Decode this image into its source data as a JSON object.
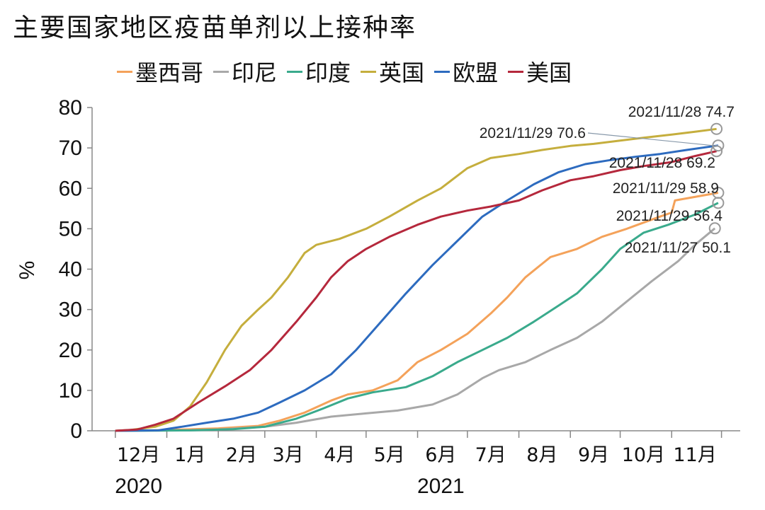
{
  "chart_data": {
    "type": "line",
    "title": "主要国家地区疫苗单剂以上接种率",
    "ylabel": "%",
    "ylim": [
      0,
      80
    ],
    "yticks": [
      0,
      10,
      20,
      30,
      40,
      50,
      60,
      70,
      80
    ],
    "x_start": "2020-12-01",
    "x_end": "2021-11-29",
    "x_ticks": [
      {
        "date": "2020-12-15",
        "label": "12月"
      },
      {
        "date": "2021-01-15",
        "label": "1月"
      },
      {
        "date": "2021-02-15",
        "label": "2月"
      },
      {
        "date": "2021-03-15",
        "label": "3月"
      },
      {
        "date": "2021-04-15",
        "label": "4月"
      },
      {
        "date": "2021-05-15",
        "label": "5月"
      },
      {
        "date": "2021-06-15",
        "label": "6月"
      },
      {
        "date": "2021-07-15",
        "label": "7月"
      },
      {
        "date": "2021-08-15",
        "label": "8月"
      },
      {
        "date": "2021-09-15",
        "label": "9月"
      },
      {
        "date": "2021-10-15",
        "label": "10月"
      },
      {
        "date": "2021-11-15",
        "label": "11月"
      }
    ],
    "year_labels": [
      {
        "date": "2020-12-15",
        "label": "2020"
      },
      {
        "date": "2021-06-15",
        "label": "2021"
      }
    ],
    "grid": false,
    "legend_position": "top",
    "series": [
      {
        "name": "墨西哥",
        "color": "#f4a25a",
        "points": [
          [
            "2020-12-01",
            0
          ],
          [
            "2020-12-24",
            0.1
          ],
          [
            "2021-01-10",
            0.3
          ],
          [
            "2021-02-01",
            0.6
          ],
          [
            "2021-02-25",
            1.2
          ],
          [
            "2021-03-10",
            2.5
          ],
          [
            "2021-03-25",
            4.5
          ],
          [
            "2021-04-10",
            7.5
          ],
          [
            "2021-04-20",
            9
          ],
          [
            "2021-05-05",
            10
          ],
          [
            "2021-05-20",
            12.5
          ],
          [
            "2021-06-01",
            17
          ],
          [
            "2021-06-15",
            20
          ],
          [
            "2021-07-01",
            24
          ],
          [
            "2021-07-15",
            29
          ],
          [
            "2021-07-25",
            33
          ],
          [
            "2021-08-05",
            38
          ],
          [
            "2021-08-20",
            43
          ],
          [
            "2021-09-05",
            45
          ],
          [
            "2021-09-20",
            48
          ],
          [
            "2021-10-05",
            50
          ],
          [
            "2021-10-25",
            53
          ],
          [
            "2021-11-01",
            54
          ],
          [
            "2021-11-03",
            57
          ],
          [
            "2021-11-29",
            58.9
          ]
        ]
      },
      {
        "name": "印尼",
        "color": "#a8a8a8",
        "points": [
          [
            "2020-12-01",
            0
          ],
          [
            "2021-01-13",
            0.1
          ],
          [
            "2021-02-01",
            0.3
          ],
          [
            "2021-03-01",
            1
          ],
          [
            "2021-03-20",
            2
          ],
          [
            "2021-04-10",
            3.5
          ],
          [
            "2021-05-01",
            4.3
          ],
          [
            "2021-05-20",
            5
          ],
          [
            "2021-06-10",
            6.5
          ],
          [
            "2021-06-25",
            9
          ],
          [
            "2021-07-10",
            13
          ],
          [
            "2021-07-20",
            15
          ],
          [
            "2021-08-05",
            17
          ],
          [
            "2021-08-20",
            20
          ],
          [
            "2021-09-05",
            23
          ],
          [
            "2021-09-20",
            27
          ],
          [
            "2021-10-05",
            32
          ],
          [
            "2021-10-20",
            37
          ],
          [
            "2021-11-05",
            42
          ],
          [
            "2021-11-15",
            46
          ],
          [
            "2021-11-27",
            50.1
          ]
        ]
      },
      {
        "name": "印度",
        "color": "#3aaa8c",
        "points": [
          [
            "2020-12-01",
            0
          ],
          [
            "2021-01-16",
            0.1
          ],
          [
            "2021-02-10",
            0.4
          ],
          [
            "2021-03-01",
            1
          ],
          [
            "2021-03-20",
            3
          ],
          [
            "2021-04-05",
            5.5
          ],
          [
            "2021-04-20",
            8
          ],
          [
            "2021-05-05",
            9.5
          ],
          [
            "2021-05-25",
            10.8
          ],
          [
            "2021-06-10",
            13.5
          ],
          [
            "2021-06-25",
            17
          ],
          [
            "2021-07-10",
            20
          ],
          [
            "2021-07-25",
            23
          ],
          [
            "2021-08-10",
            27
          ],
          [
            "2021-08-25",
            31
          ],
          [
            "2021-09-05",
            34
          ],
          [
            "2021-09-20",
            40
          ],
          [
            "2021-10-01",
            45
          ],
          [
            "2021-10-15",
            49
          ],
          [
            "2021-10-30",
            51
          ],
          [
            "2021-11-15",
            53.5
          ],
          [
            "2021-11-29",
            56.4
          ]
        ]
      },
      {
        "name": "英国",
        "color": "#c5ae3d",
        "points": [
          [
            "2020-12-01",
            0
          ],
          [
            "2020-12-10",
            0.2
          ],
          [
            "2020-12-25",
            1
          ],
          [
            "2021-01-05",
            2.5
          ],
          [
            "2021-01-15",
            6
          ],
          [
            "2021-01-25",
            12
          ],
          [
            "2021-02-05",
            20
          ],
          [
            "2021-02-15",
            26
          ],
          [
            "2021-02-25",
            30
          ],
          [
            "2021-03-05",
            33
          ],
          [
            "2021-03-15",
            38
          ],
          [
            "2021-03-25",
            44
          ],
          [
            "2021-04-01",
            46
          ],
          [
            "2021-04-15",
            47.5
          ],
          [
            "2021-05-01",
            50
          ],
          [
            "2021-05-15",
            53
          ],
          [
            "2021-06-01",
            57
          ],
          [
            "2021-06-15",
            60
          ],
          [
            "2021-07-01",
            65
          ],
          [
            "2021-07-15",
            67.5
          ],
          [
            "2021-08-01",
            68.5
          ],
          [
            "2021-08-15",
            69.5
          ],
          [
            "2021-09-01",
            70.5
          ],
          [
            "2021-09-15",
            71
          ],
          [
            "2021-10-01",
            71.8
          ],
          [
            "2021-10-15",
            72.5
          ],
          [
            "2021-11-01",
            73.3
          ],
          [
            "2021-11-15",
            74
          ],
          [
            "2021-11-28",
            74.7
          ]
        ]
      },
      {
        "name": "欧盟",
        "color": "#2d6bbf",
        "points": [
          [
            "2020-12-01",
            0
          ],
          [
            "2020-12-27",
            0.1
          ],
          [
            "2021-01-10",
            1
          ],
          [
            "2021-01-25",
            2
          ],
          [
            "2021-02-10",
            3
          ],
          [
            "2021-02-25",
            4.5
          ],
          [
            "2021-03-10",
            7
          ],
          [
            "2021-03-25",
            10
          ],
          [
            "2021-04-10",
            14
          ],
          [
            "2021-04-25",
            20
          ],
          [
            "2021-05-10",
            27
          ],
          [
            "2021-05-25",
            34
          ],
          [
            "2021-06-10",
            41
          ],
          [
            "2021-06-25",
            47
          ],
          [
            "2021-07-10",
            53
          ],
          [
            "2021-07-25",
            57
          ],
          [
            "2021-08-10",
            61
          ],
          [
            "2021-08-25",
            64
          ],
          [
            "2021-09-10",
            66
          ],
          [
            "2021-09-25",
            67
          ],
          [
            "2021-10-10",
            67.8
          ],
          [
            "2021-10-25",
            68.5
          ],
          [
            "2021-11-10",
            69.5
          ],
          [
            "2021-11-29",
            70.6
          ]
        ]
      },
      {
        "name": "美国",
        "color": "#b5283c",
        "points": [
          [
            "2020-12-01",
            0
          ],
          [
            "2020-12-14",
            0.3
          ],
          [
            "2020-12-25",
            1.5
          ],
          [
            "2021-01-05",
            3
          ],
          [
            "2021-01-20",
            7
          ],
          [
            "2021-02-05",
            11
          ],
          [
            "2021-02-20",
            15
          ],
          [
            "2021-03-05",
            20
          ],
          [
            "2021-03-20",
            27
          ],
          [
            "2021-04-01",
            33
          ],
          [
            "2021-04-10",
            38
          ],
          [
            "2021-04-20",
            42
          ],
          [
            "2021-05-01",
            45
          ],
          [
            "2021-05-15",
            48
          ],
          [
            "2021-06-01",
            51
          ],
          [
            "2021-06-15",
            53
          ],
          [
            "2021-07-01",
            54.5
          ],
          [
            "2021-07-15",
            55.5
          ],
          [
            "2021-08-01",
            57
          ],
          [
            "2021-08-15",
            59.5
          ],
          [
            "2021-09-01",
            62
          ],
          [
            "2021-09-15",
            63
          ],
          [
            "2021-10-01",
            64.5
          ],
          [
            "2021-10-15",
            65.5
          ],
          [
            "2021-11-01",
            66.5
          ],
          [
            "2021-11-15",
            68
          ],
          [
            "2021-11-28",
            69.2
          ]
        ]
      }
    ],
    "annotations": [
      {
        "text": "2021/11/28 74.7",
        "series": "英国",
        "date": "2021-11-28",
        "value": 74.7
      },
      {
        "text": "2021/11/29 70.6",
        "series": "欧盟",
        "date": "2021-11-29",
        "value": 70.6
      },
      {
        "text": "2021/11/28 69.2",
        "series": "美国",
        "date": "2021-11-28",
        "value": 69.2
      },
      {
        "text": "2021/11/29 58.9",
        "series": "墨西哥",
        "date": "2021-11-29",
        "value": 58.9
      },
      {
        "text": "2021/11/29 56.4",
        "series": "印度",
        "date": "2021-11-29",
        "value": 56.4
      },
      {
        "text": "2021/11/27 50.1",
        "series": "印尼",
        "date": "2021-11-27",
        "value": 50.1
      }
    ]
  }
}
